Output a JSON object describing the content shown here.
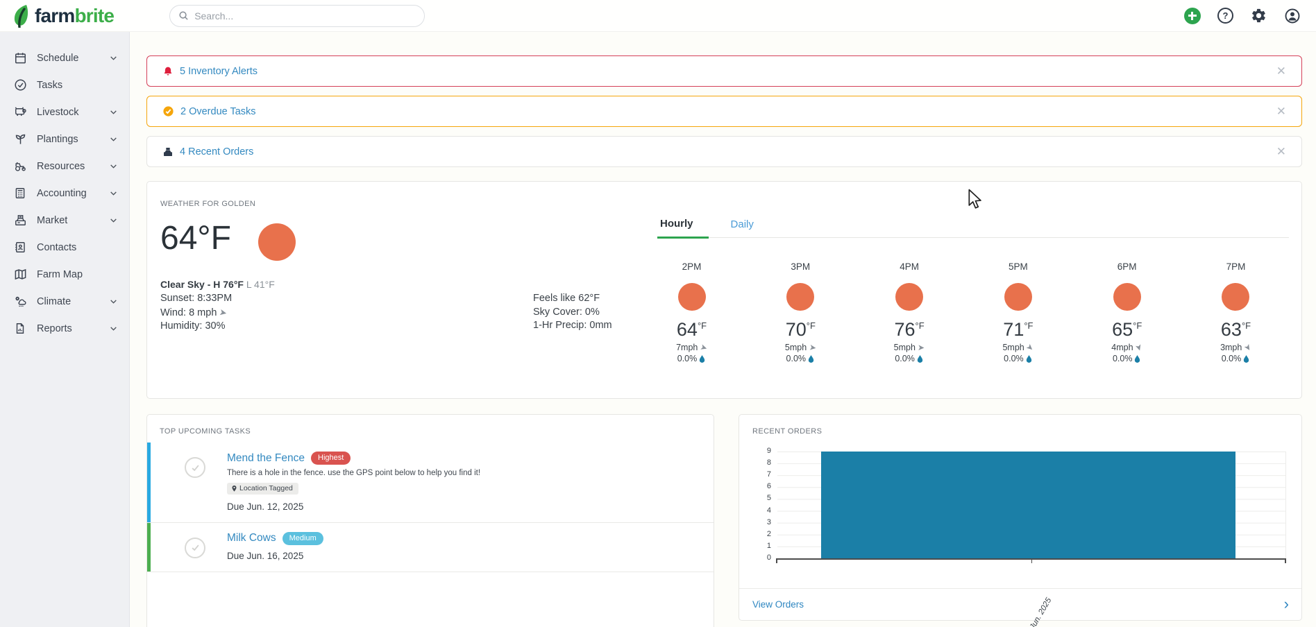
{
  "topbar": {
    "logo_farm": "farm",
    "logo_brite": "brite",
    "search_placeholder": "Search..."
  },
  "icons": {
    "help_glyph": "?",
    "wind_arrow": "➤",
    "close_glyph": "✕",
    "view_orders_chevron": "›"
  },
  "sidebar": {
    "items": [
      {
        "label": "Schedule",
        "icon": "calendar-icon",
        "has_chevron": true
      },
      {
        "label": "Tasks",
        "icon": "check-circle-icon",
        "has_chevron": false
      },
      {
        "label": "Livestock",
        "icon": "cow-icon",
        "has_chevron": true
      },
      {
        "label": "Plantings",
        "icon": "sprout-icon",
        "has_chevron": true
      },
      {
        "label": "Resources",
        "icon": "tractor-icon",
        "has_chevron": true
      },
      {
        "label": "Accounting",
        "icon": "calculator-icon",
        "has_chevron": true
      },
      {
        "label": "Market",
        "icon": "cash-register-icon",
        "has_chevron": true
      },
      {
        "label": "Contacts",
        "icon": "address-book-icon",
        "has_chevron": false
      },
      {
        "label": "Farm Map",
        "icon": "map-icon",
        "has_chevron": false
      },
      {
        "label": "Climate",
        "icon": "cloud-gear-icon",
        "has_chevron": true
      },
      {
        "label": "Reports",
        "icon": "report-icon",
        "has_chevron": true
      }
    ]
  },
  "alerts": {
    "items": [
      {
        "label": "5 Inventory Alerts",
        "icon": "bell-icon",
        "border_color": "#d43f57"
      },
      {
        "label": "2 Overdue Tasks",
        "icon": "check-circle-icon",
        "border_color": "#f5a50b"
      },
      {
        "label": "4 Recent Orders",
        "icon": "cash-register-icon",
        "border_color": "#e4e4e2"
      }
    ]
  },
  "weather": {
    "heading": "WEATHER FOR GOLDEN",
    "current_temp": "64°F",
    "summary_bold": "Clear Sky - H 76°F",
    "summary_light": "L 41°F",
    "sunset": "Sunset: 8:33PM",
    "wind": "Wind: 8 mph",
    "humidity": "Humidity: 30%",
    "feels_like": "Feels like 62°F",
    "sky_cover": "Sky Cover: 0%",
    "precip_hr": "1-Hr Precip: 0mm",
    "temp_unit": "°F",
    "tabs": {
      "hourly": "Hourly",
      "daily": "Daily"
    },
    "hourly": [
      {
        "time": "2PM",
        "temp": "64",
        "wind": "7mph",
        "precip": "0.0%"
      },
      {
        "time": "3PM",
        "temp": "70",
        "wind": "5mph",
        "precip": "0.0%"
      },
      {
        "time": "4PM",
        "temp": "76",
        "wind": "5mph",
        "precip": "0.0%"
      },
      {
        "time": "5PM",
        "temp": "71",
        "wind": "5mph",
        "precip": "0.0%"
      },
      {
        "time": "6PM",
        "temp": "65",
        "wind": "4mph",
        "precip": "0.0%"
      },
      {
        "time": "7PM",
        "temp": "63",
        "wind": "3mph",
        "precip": "0.0%"
      }
    ],
    "sun_color": "#e8714c"
  },
  "tasks": {
    "heading": "TOP UPCOMING TASKS",
    "items": [
      {
        "title": "Mend the Fence",
        "priority": "Highest",
        "priority_color": "#d9534f",
        "description": "There is a hole in the fence. use the GPS point below to help you find it!",
        "tag": "Location Tagged",
        "due": "Due Jun. 12, 2025",
        "bar_color": "#29a9e1"
      },
      {
        "title": "Milk Cows",
        "priority": "Medium",
        "priority_color": "#5bc0de",
        "description": "",
        "tag": "",
        "due": "Due Jun. 16, 2025",
        "bar_color": "#4cae4f"
      }
    ]
  },
  "orders": {
    "heading": "RECENT ORDERS",
    "link_label": "View Orders"
  },
  "chart_data": {
    "type": "bar",
    "title": "RECENT ORDERS",
    "categories": [
      "Jun. 2025"
    ],
    "values": [
      9
    ],
    "xlabel": "",
    "ylabel": "",
    "ylim": [
      0,
      9
    ],
    "yticks": [
      0,
      1,
      2,
      3,
      4,
      5,
      6,
      7,
      8,
      9
    ],
    "grid": true,
    "legend": false,
    "bar_color": "#1b7fa7"
  },
  "colors": {
    "brand_green": "#3cae49",
    "link_blue": "#3389c0",
    "alert_red": "#d43f57",
    "alert_orange": "#f5a50b",
    "sun_orange": "#e8714c",
    "chart_bar": "#1b7fa7"
  }
}
